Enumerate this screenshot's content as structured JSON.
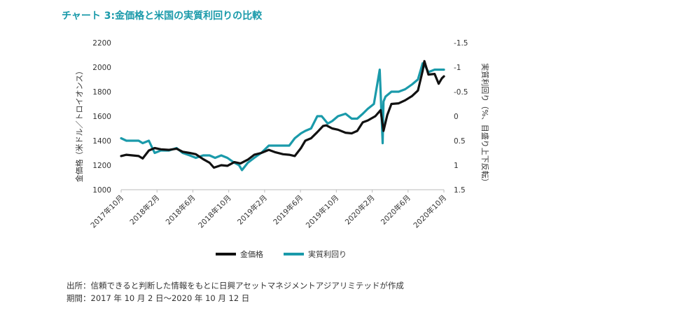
{
  "title": "チャート 3:金価格と米国の実質利回りの比較",
  "source": "出所：信頼できると判断した情報をもとに日興アセットマネジメントアジアリミテッドが作成",
  "period": "期間：2017 年 10 月 2 日～2020 年 10 月 12 日",
  "colors": {
    "gold": "#111111",
    "real_yield": "#1a9aaa",
    "title": "#1a9aaa"
  },
  "chart_data": {
    "type": "line",
    "title": "チャート 3:金価格と米国の実質利回りの比較",
    "ylabel": "金価格（米ドル／トロイオンス）",
    "y2label": "実質利回り（%、目盛り上下反転）",
    "ylim": [
      1000,
      2200
    ],
    "y2lim": [
      1.5,
      -1.5
    ],
    "y2_inverted": true,
    "yticks": [
      "2200",
      "2000",
      "1800",
      "1600",
      "1400",
      "1200",
      "1000"
    ],
    "y2ticks": [
      "-1.5",
      "-1",
      "-0.5",
      "0",
      "0.5",
      "1",
      "1.5"
    ],
    "xticks": [
      "2017年10月",
      "2018年2月",
      "2018年6月",
      "2018年10月",
      "2019年2月",
      "2019年6月",
      "2019年10月",
      "2020年2月",
      "2020年6月",
      "2020年10月"
    ],
    "xlim": [
      "2017-10-02",
      "2020-10-12"
    ],
    "legend_position": "bottom",
    "series": [
      {
        "name": "金価格",
        "axis": "left",
        "x": [
          "2017-10-02",
          "2017-10-20",
          "2017-11-10",
          "2017-12-01",
          "2017-12-15",
          "2018-01-05",
          "2018-01-25",
          "2018-02-15",
          "2018-03-15",
          "2018-04-10",
          "2018-05-01",
          "2018-05-25",
          "2018-06-15",
          "2018-07-10",
          "2018-08-01",
          "2018-08-16",
          "2018-09-10",
          "2018-10-01",
          "2018-10-25",
          "2018-11-15",
          "2018-12-10",
          "2019-01-01",
          "2019-01-25",
          "2019-02-20",
          "2019-03-15",
          "2019-04-10",
          "2019-05-01",
          "2019-05-20",
          "2019-06-10",
          "2019-06-25",
          "2019-07-15",
          "2019-08-05",
          "2019-08-25",
          "2019-09-05",
          "2019-09-25",
          "2019-10-15",
          "2019-11-10",
          "2019-12-01",
          "2019-12-20",
          "2020-01-08",
          "2020-01-25",
          "2020-02-20",
          "2020-03-09",
          "2020-03-19",
          "2020-04-01",
          "2020-04-15",
          "2020-05-10",
          "2020-06-01",
          "2020-06-25",
          "2020-07-15",
          "2020-07-31",
          "2020-08-06",
          "2020-08-20",
          "2020-09-10",
          "2020-09-24",
          "2020-10-05",
          "2020-10-12"
        ],
        "values": [
          1275,
          1285,
          1280,
          1275,
          1255,
          1320,
          1340,
          1330,
          1325,
          1335,
          1310,
          1300,
          1290,
          1250,
          1220,
          1180,
          1200,
          1195,
          1225,
          1215,
          1245,
          1285,
          1300,
          1325,
          1305,
          1290,
          1285,
          1275,
          1340,
          1400,
          1420,
          1470,
          1520,
          1525,
          1500,
          1490,
          1465,
          1460,
          1480,
          1550,
          1565,
          1600,
          1650,
          1480,
          1610,
          1700,
          1705,
          1730,
          1765,
          1810,
          1970,
          2050,
          1940,
          1945,
          1865,
          1910,
          1925
        ]
      },
      {
        "name": "実質利回り",
        "axis": "right",
        "x": [
          "2017-10-02",
          "2017-10-20",
          "2017-11-10",
          "2017-12-01",
          "2017-12-15",
          "2018-01-05",
          "2018-01-25",
          "2018-02-15",
          "2018-03-15",
          "2018-04-10",
          "2018-05-01",
          "2018-05-25",
          "2018-06-15",
          "2018-07-10",
          "2018-08-01",
          "2018-08-20",
          "2018-09-10",
          "2018-10-01",
          "2018-10-25",
          "2018-11-10",
          "2018-11-20",
          "2018-12-10",
          "2019-01-01",
          "2019-01-25",
          "2019-02-20",
          "2019-03-15",
          "2019-04-10",
          "2019-05-01",
          "2019-05-20",
          "2019-06-10",
          "2019-06-25",
          "2019-07-15",
          "2019-08-05",
          "2019-08-20",
          "2019-09-10",
          "2019-09-25",
          "2019-10-15",
          "2019-11-10",
          "2019-12-01",
          "2019-12-20",
          "2020-01-08",
          "2020-01-25",
          "2020-02-15",
          "2020-03-06",
          "2020-03-16",
          "2020-03-19",
          "2020-03-26",
          "2020-04-15",
          "2020-05-10",
          "2020-06-01",
          "2020-06-25",
          "2020-07-15",
          "2020-07-31",
          "2020-08-06",
          "2020-08-20",
          "2020-09-10",
          "2020-09-24",
          "2020-10-05",
          "2020-10-12"
        ],
        "values": [
          0.45,
          0.5,
          0.5,
          0.5,
          0.55,
          0.5,
          0.75,
          0.7,
          0.7,
          0.65,
          0.75,
          0.8,
          0.85,
          0.8,
          0.8,
          0.85,
          0.8,
          0.85,
          0.95,
          1.0,
          1.1,
          0.95,
          0.85,
          0.75,
          0.6,
          0.6,
          0.6,
          0.6,
          0.45,
          0.35,
          0.3,
          0.25,
          0.0,
          0.0,
          0.15,
          0.1,
          0.0,
          -0.05,
          0.05,
          0.05,
          -0.05,
          -0.15,
          -0.25,
          -0.95,
          0.55,
          -0.3,
          -0.4,
          -0.5,
          -0.5,
          -0.55,
          -0.65,
          -0.75,
          -1.08,
          -1.05,
          -0.9,
          -0.95,
          -0.95,
          -0.95,
          -0.95
        ]
      }
    ]
  },
  "legend": {
    "gold_label": "金価格",
    "yield_label": "実質利回り"
  }
}
